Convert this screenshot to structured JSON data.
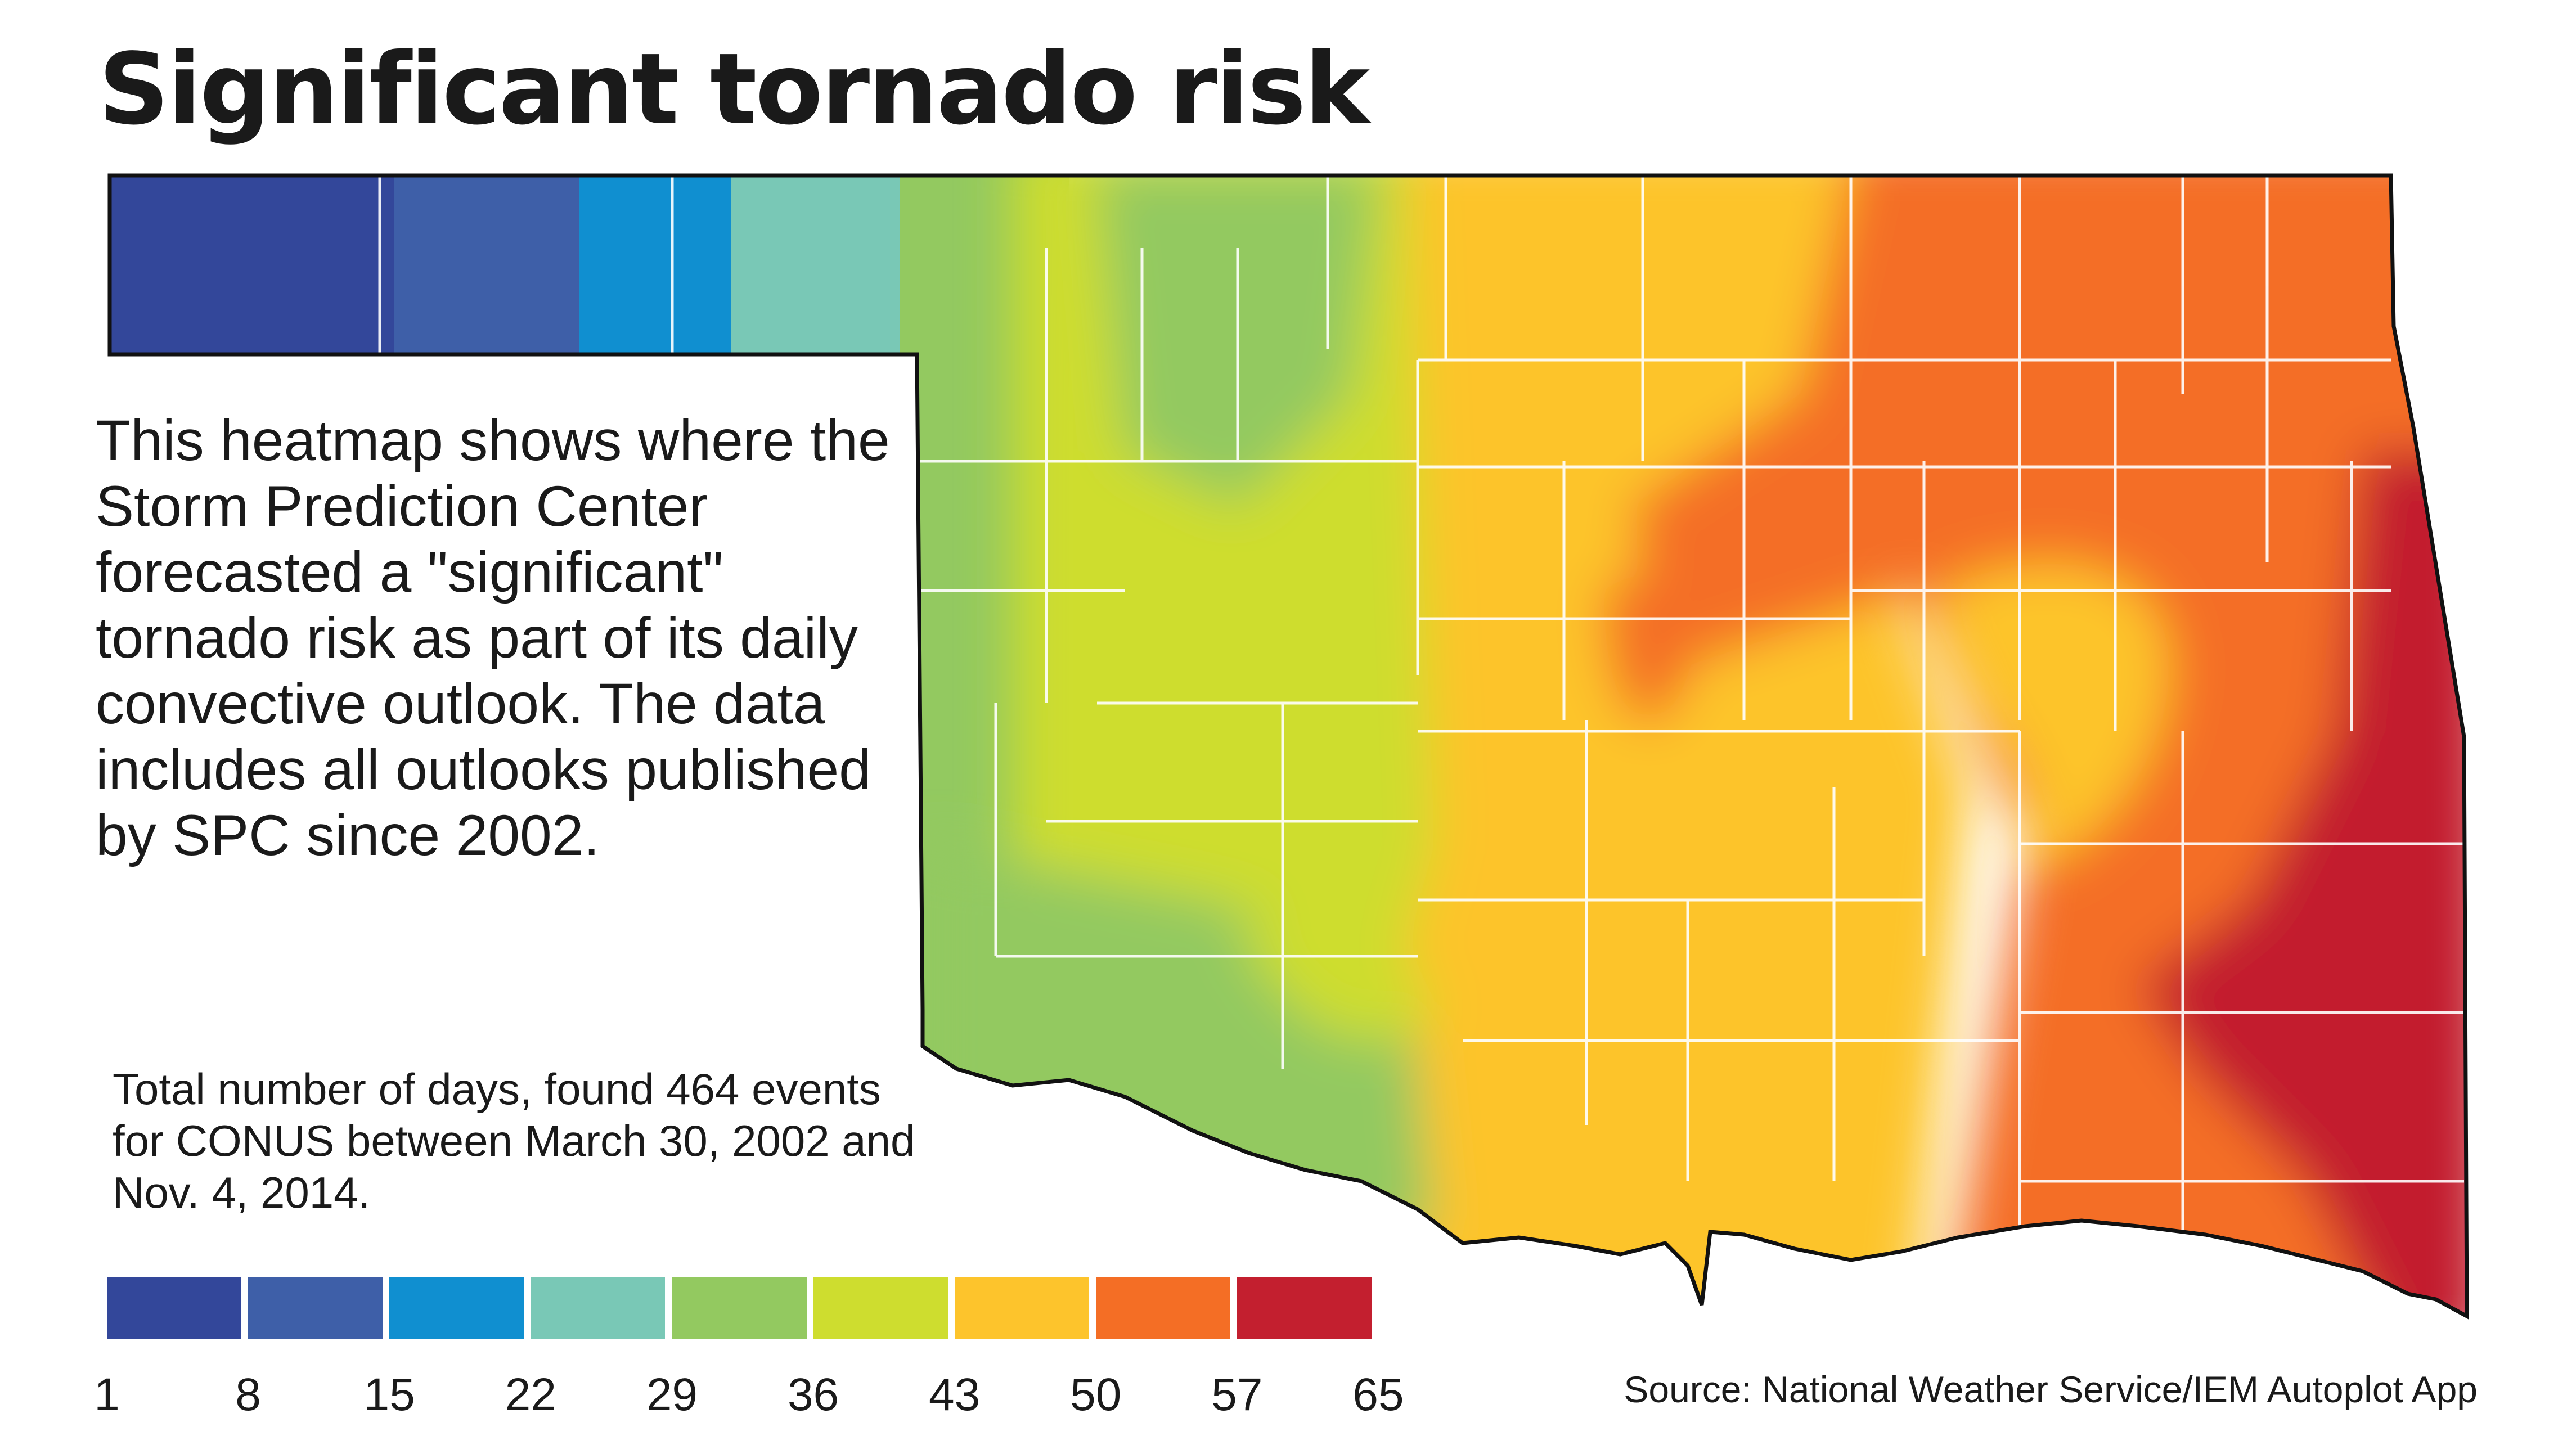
{
  "header": {
    "title": "Significant tornado risk"
  },
  "description": "This heatmap shows where the Storm Prediction Center forecasted a \"significant\" tornado risk as part of its daily convective outlook. The data includes all outlooks published by SPC since 2002.",
  "note": "Total number of days, found 464 events for CONUS between March 30, 2002 and Nov. 4, 2014.",
  "legend": {
    "colors": [
      "#33479a",
      "#3e5fa8",
      "#108fd0",
      "#79c8b6",
      "#93c960",
      "#cedd2f",
      "#fdc42c",
      "#f46e25",
      "#c31f2f"
    ],
    "ticks": [
      "1",
      "8",
      "15",
      "22",
      "29",
      "36",
      "43",
      "50",
      "57",
      "65"
    ]
  },
  "map": {
    "region": "Oklahoma",
    "metric": "days with significant tornado risk",
    "gradient": "low in the western panhandle (1-22 days), rising toward the southeast (57-65 days)"
  },
  "source": "Source: National Weather Service/IEM Autoplot App"
}
